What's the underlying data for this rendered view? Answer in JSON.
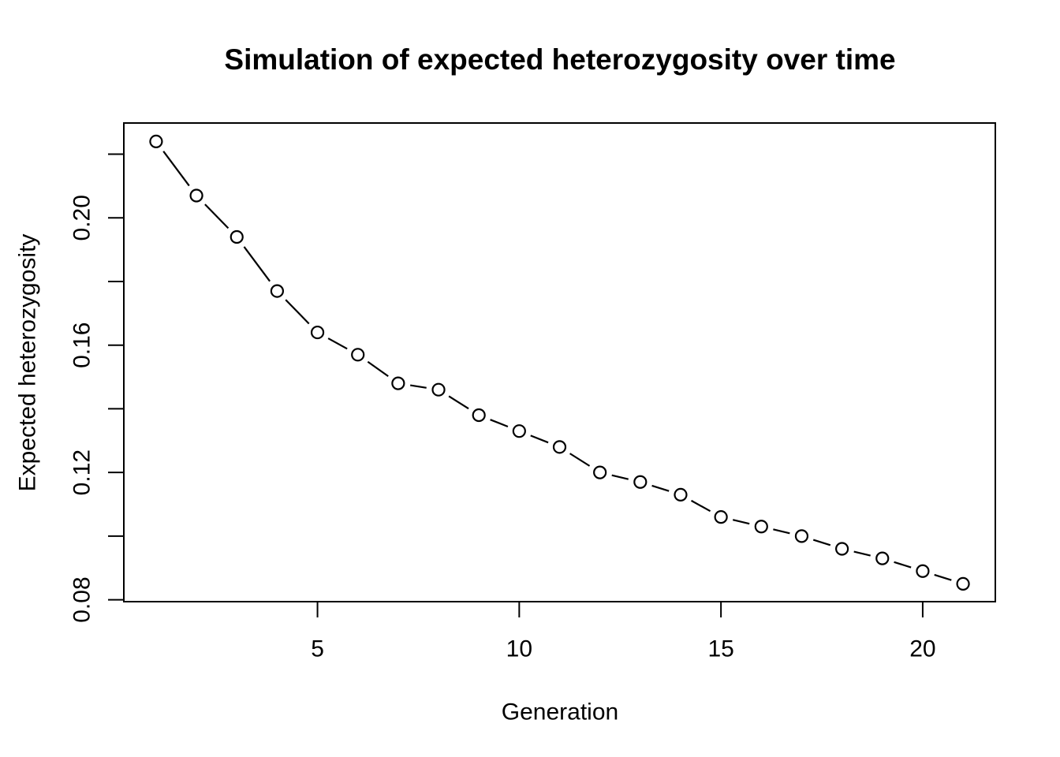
{
  "figure": {
    "background": "#FFFFFF",
    "foreground": "#000000"
  },
  "chart_data": {
    "type": "line",
    "title": "Simulation of expected heterozygosity over time",
    "xlabel": "Generation",
    "ylabel": "Expected heterozygosity",
    "x": [
      1,
      2,
      3,
      4,
      5,
      6,
      7,
      8,
      9,
      10,
      11,
      12,
      13,
      14,
      15,
      16,
      17,
      18,
      19,
      20,
      21
    ],
    "values": [
      0.224,
      0.207,
      0.194,
      0.177,
      0.164,
      0.157,
      0.148,
      0.146,
      0.138,
      0.133,
      0.128,
      0.12,
      0.117,
      0.113,
      0.106,
      0.103,
      0.1,
      0.096,
      0.093,
      0.089,
      0.085
    ],
    "series_name": "Expected heterozygosity",
    "marker": "open-circle",
    "line_style": "dashed-between-points",
    "xlim": [
      0.2,
      21.8
    ],
    "ylim": [
      0.0794,
      0.2298
    ],
    "x_ticks": [
      5,
      10,
      15,
      20
    ],
    "x_tick_labels": [
      "5",
      "10",
      "15",
      "20"
    ],
    "y_ticks": [
      0.08,
      0.1,
      0.12,
      0.14,
      0.16,
      0.18,
      0.2,
      0.22
    ],
    "y_ticks_labeled": [
      0.08,
      0.12,
      0.16,
      0.2
    ],
    "y_tick_labels": [
      "0.08",
      "0.12",
      "0.16",
      "0.20"
    ],
    "grid": "off",
    "legend": "none"
  }
}
